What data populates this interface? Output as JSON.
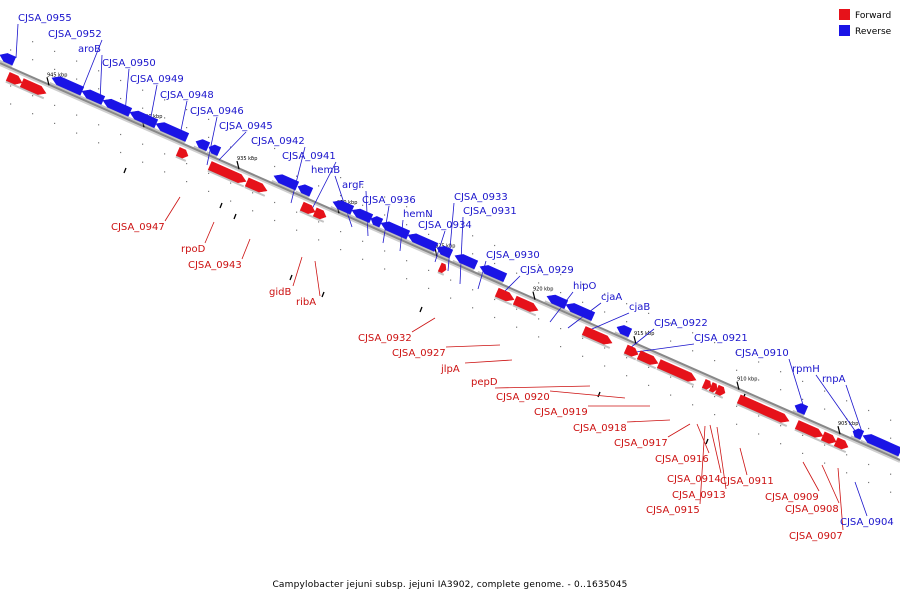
{
  "caption": "Campylobacter jejuni subsp. jejuni IA3902, complete genome. - 0..1635045",
  "legend": {
    "forward": "Forward",
    "reverse": "Reverse"
  },
  "colors": {
    "forward": "#e6121a",
    "reverse": "#1a14e6",
    "forward_label": "#cc1111",
    "reverse_label": "#1a14cc",
    "backbone": "#888888"
  },
  "ticks": [
    "945 kbp",
    "940 kbp",
    "935 kbp",
    "930 kbp",
    "925 kbp",
    "920 kbp",
    "915 kbp",
    "910 kbp",
    "905 kbp"
  ],
  "genes_reverse": [
    "CJSA_0955",
    "CJSA_0952",
    "aroB",
    "CJSA_0950",
    "CJSA_0949",
    "CJSA_0948",
    "CJSA_0946",
    "CJSA_0945",
    "CJSA_0942",
    "CJSA_0941",
    "hemB",
    "argF",
    "CJSA_0936",
    "hemN",
    "CJSA_0934",
    "CJSA_0933",
    "CJSA_0931",
    "CJSA_0930",
    "CJSA_0929",
    "hipO",
    "cjaA",
    "cjaB",
    "CJSA_0922",
    "CJSA_0921",
    "CJSA_0910",
    "rpmH",
    "rnpA",
    "CJSA_0904"
  ],
  "genes_forward": [
    "CJSA_0947",
    "rpoD",
    "CJSA_0943",
    "gidB",
    "ribA",
    "CJSA_0932",
    "CJSA_0927",
    "jlpA",
    "pepD",
    "CJSA_0920",
    "CJSA_0919",
    "CJSA_0918",
    "CJSA_0917",
    "CJSA_0916",
    "CJSA_0914",
    "CJSA_0913",
    "CJSA_0915",
    "CJSA_0911",
    "CJSA_0909",
    "CJSA_0908",
    "CJSA_0907"
  ]
}
